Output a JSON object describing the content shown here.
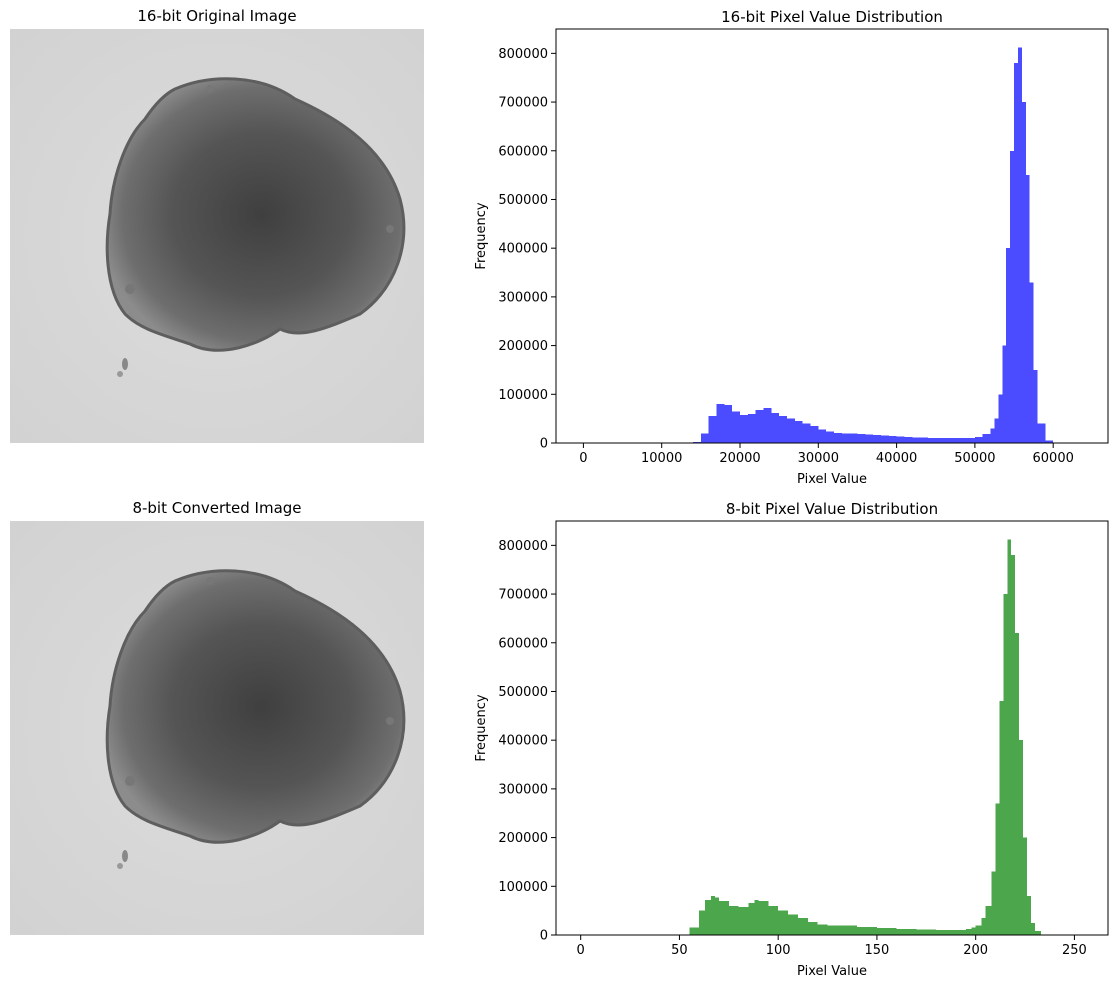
{
  "figure": {
    "image_top_title": "16-bit Original Image",
    "image_bottom_title": "8-bit Converted Image",
    "image_content": "grayscale-micrograph-cell-spheroid"
  },
  "chart_data": [
    {
      "type": "bar",
      "title": "16-bit Pixel Value Distribution",
      "xlabel": "Pixel Value",
      "ylabel": "Frequency",
      "xlim": [
        -3500,
        67000
      ],
      "ylim": [
        0,
        850000
      ],
      "xticks": [
        0,
        10000,
        20000,
        30000,
        40000,
        50000,
        60000
      ],
      "xtick_labels": [
        "0",
        "10000",
        "20000",
        "30000",
        "40000",
        "50000",
        "60000"
      ],
      "yticks": [
        0,
        100000,
        200000,
        300000,
        400000,
        500000,
        600000,
        700000,
        800000
      ],
      "ytick_labels": [
        "0",
        "100000",
        "200000",
        "300000",
        "400000",
        "500000",
        "600000",
        "700000",
        "800000"
      ],
      "color": "#4b4bff",
      "grid": false,
      "series": [
        {
          "x": [
            14000,
            15000,
            16000,
            17000,
            18000,
            19000,
            20000,
            21000,
            22000,
            23000,
            24000,
            25000,
            26000,
            27000,
            28000,
            29000,
            30000,
            31000,
            32000,
            33000,
            34000,
            35000,
            36000,
            37000,
            38000,
            39000,
            40000,
            41000,
            42000,
            43000,
            44000,
            45000,
            46000,
            47000,
            48000,
            49000,
            50000,
            51000,
            52000,
            52500,
            53000,
            53500,
            54000,
            54500,
            55000,
            55500,
            56000,
            56500,
            57000,
            57500,
            58000,
            59000,
            60000
          ],
          "y": [
            2000,
            20000,
            55000,
            80000,
            78000,
            65000,
            58000,
            60000,
            68000,
            72000,
            62000,
            55000,
            50000,
            45000,
            40000,
            35000,
            28000,
            24000,
            21000,
            20000,
            19000,
            18000,
            17000,
            16000,
            15000,
            14000,
            13000,
            12000,
            11500,
            11000,
            10500,
            10000,
            10000,
            10000,
            10000,
            10500,
            12000,
            18000,
            30000,
            50000,
            100000,
            200000,
            400000,
            600000,
            780000,
            812000,
            700000,
            550000,
            330000,
            150000,
            40000,
            5000,
            1000
          ]
        }
      ]
    },
    {
      "type": "bar",
      "title": "8-bit Pixel Value Distribution",
      "xlabel": "Pixel Value",
      "ylabel": "Frequency",
      "xlim": [
        -12.5,
        267
      ],
      "ylim": [
        0,
        850000
      ],
      "xticks": [
        0,
        50,
        100,
        150,
        200,
        250
      ],
      "xtick_labels": [
        "0",
        "50",
        "100",
        "150",
        "200",
        "250"
      ],
      "yticks": [
        0,
        100000,
        200000,
        300000,
        400000,
        500000,
        600000,
        700000,
        800000
      ],
      "ytick_labels": [
        "0",
        "100000",
        "200000",
        "300000",
        "400000",
        "500000",
        "600000",
        "700000",
        "800000"
      ],
      "color": "#4ca64c",
      "grid": false,
      "series": [
        {
          "x": [
            50,
            55,
            60,
            63,
            66,
            68,
            70,
            75,
            80,
            85,
            88,
            90,
            95,
            100,
            105,
            110,
            115,
            120,
            125,
            130,
            140,
            150,
            160,
            170,
            180,
            190,
            195,
            198,
            200,
            203,
            205,
            208,
            210,
            212,
            214,
            216,
            218,
            220,
            222,
            224,
            226,
            228,
            230,
            233
          ],
          "y": [
            0,
            15000,
            50000,
            72000,
            80000,
            77000,
            70000,
            60000,
            58000,
            66000,
            72000,
            70000,
            60000,
            50000,
            42000,
            35000,
            27000,
            22000,
            20000,
            19000,
            16000,
            14000,
            12000,
            11000,
            10000,
            10500,
            12000,
            15000,
            20000,
            35000,
            60000,
            130000,
            270000,
            480000,
            700000,
            812000,
            780000,
            620000,
            400000,
            200000,
            80000,
            25000,
            8000,
            1000
          ]
        }
      ]
    }
  ]
}
